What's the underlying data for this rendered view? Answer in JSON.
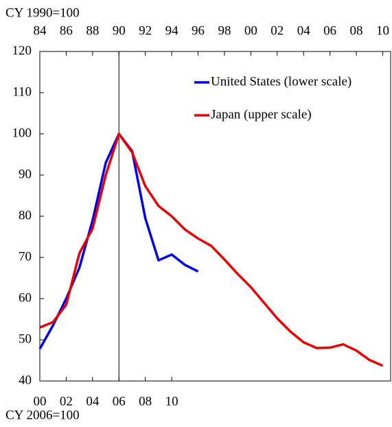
{
  "chart_data": {
    "type": "line",
    "top_axis_label": "CY 1990=100",
    "bottom_axis_label": "CY 2006=100",
    "xlim": [
      1984,
      2010.6
    ],
    "xticks": [
      {
        "value": 1984,
        "label": "84"
      },
      {
        "value": 1986,
        "label": "86"
      },
      {
        "value": 1988,
        "label": "88"
      },
      {
        "value": 1990,
        "label": "90"
      },
      {
        "value": 1992,
        "label": "92"
      },
      {
        "value": 1994,
        "label": "94"
      },
      {
        "value": 1996,
        "label": "96"
      },
      {
        "value": 1998,
        "label": "98"
      },
      {
        "value": 2000,
        "label": "00"
      },
      {
        "value": 2002,
        "label": "02"
      },
      {
        "value": 2004,
        "label": "04"
      },
      {
        "value": 2006,
        "label": "06"
      },
      {
        "value": 2008,
        "label": "08"
      },
      {
        "value": 2010,
        "label": "10"
      }
    ],
    "x2lim": [
      2000,
      2026.6
    ],
    "x2ticks": [
      {
        "value": 2000,
        "label": "00"
      },
      {
        "value": 2002,
        "label": "02"
      },
      {
        "value": 2004,
        "label": "04"
      },
      {
        "value": 2006,
        "label": "06"
      },
      {
        "value": 2008,
        "label": "08"
      },
      {
        "value": 2010,
        "label": "10"
      }
    ],
    "ylim": [
      40,
      120
    ],
    "yticks": [
      40,
      50,
      60,
      70,
      80,
      90,
      100,
      110,
      120
    ],
    "vline": 1990,
    "series": [
      {
        "name": "United States (lower scale)",
        "color": "#0000ee",
        "axis": "x2",
        "x": [
          2000,
          2001,
          2002,
          2003,
          2004,
          2005,
          2006,
          2007,
          2008,
          2009,
          2010,
          2011,
          2012
        ],
        "values": [
          47.8,
          53.5,
          60,
          67.5,
          79,
          93,
          100,
          95.8,
          79.5,
          69.3,
          70.7,
          68.2,
          66.6
        ]
      },
      {
        "name": "Japan (upper scale)",
        "color": "#ee0000",
        "axis": "x",
        "x": [
          1984,
          1985,
          1986,
          1987,
          1988,
          1989,
          1990,
          1991,
          1992,
          1993,
          1994,
          1995,
          1996,
          1997,
          1998,
          1999,
          2000,
          2001,
          2002,
          2003,
          2004,
          2005,
          2006,
          2007,
          2008,
          2009,
          2010
        ],
        "values": [
          53,
          54.3,
          58.5,
          71,
          77,
          90,
          100,
          95.5,
          87.3,
          82.5,
          80,
          76.8,
          74.6,
          72.8,
          69.5,
          66,
          62.8,
          59,
          55.2,
          52,
          49.4,
          48,
          48.1,
          48.9,
          47.4,
          45.1,
          43.7
        ]
      }
    ]
  }
}
